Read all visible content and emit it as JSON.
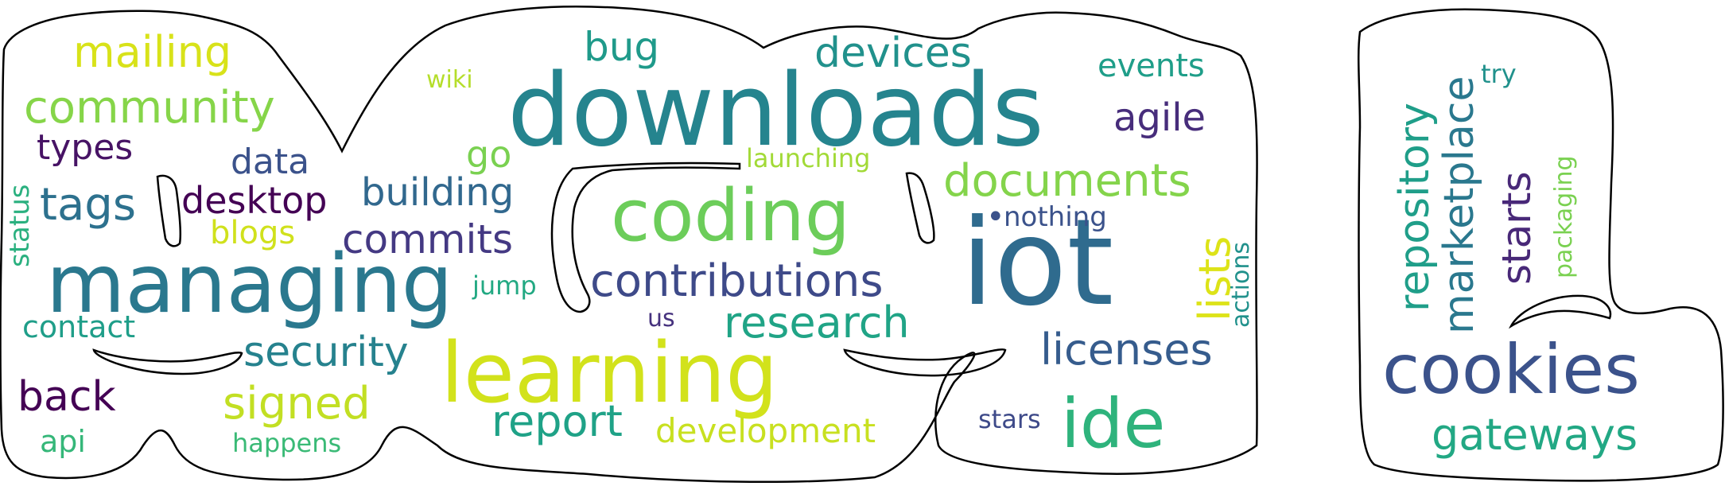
{
  "words": [
    {
      "text": "downloads",
      "color": "#25848e"
    },
    {
      "text": "iot",
      "color": "#2f6b8e"
    },
    {
      "text": "managing",
      "color": "#2a788e"
    },
    {
      "text": "learning",
      "color": "#d2e21b"
    },
    {
      "text": "coding",
      "color": "#6ccd5a"
    },
    {
      "text": "cookies",
      "color": "#3b528b"
    },
    {
      "text": "ide",
      "color": "#2eb37c"
    },
    {
      "text": "contributions",
      "color": "#3e4a89"
    },
    {
      "text": "documents",
      "color": "#84d44b"
    },
    {
      "text": "licenses",
      "color": "#365c8d"
    },
    {
      "text": "research",
      "color": "#20a486"
    },
    {
      "text": "report",
      "color": "#1fa287"
    },
    {
      "text": "security",
      "color": "#26828e"
    },
    {
      "text": "community",
      "color": "#86d549"
    },
    {
      "text": "mailing",
      "color": "#d8e219"
    },
    {
      "text": "signed",
      "color": "#c2df23"
    },
    {
      "text": "tags",
      "color": "#2d718e"
    },
    {
      "text": "commits",
      "color": "#443983"
    },
    {
      "text": "building",
      "color": "#31688e"
    },
    {
      "text": "devices",
      "color": "#21918c"
    },
    {
      "text": "repository",
      "color": "#1f9e89"
    },
    {
      "text": "marketplace",
      "color": "#2a788e"
    },
    {
      "text": "gateways",
      "color": "#22a884"
    },
    {
      "text": "starts",
      "color": "#482878"
    },
    {
      "text": "back",
      "color": "#440154"
    },
    {
      "text": "desktop",
      "color": "#440154"
    },
    {
      "text": "agile",
      "color": "#472d7b"
    },
    {
      "text": "bug",
      "color": "#1f9a8a"
    },
    {
      "text": "development",
      "color": "#c8e020"
    },
    {
      "text": "lists",
      "color": "#dde318"
    },
    {
      "text": "types",
      "color": "#471365"
    },
    {
      "text": "data",
      "color": "#3b528b"
    },
    {
      "text": "events",
      "color": "#1f9e89"
    },
    {
      "text": "go",
      "color": "#7ad151"
    },
    {
      "text": "blogs",
      "color": "#d0e11c"
    },
    {
      "text": "contact",
      "color": "#1f9e89"
    },
    {
      "text": "api",
      "color": "#35b779"
    },
    {
      "text": "happens",
      "color": "#3aba76"
    },
    {
      "text": "nothing",
      "color": "#3b528b"
    },
    {
      "text": "launching",
      "color": "#a2da37"
    },
    {
      "text": "status",
      "color": "#2ab07f"
    },
    {
      "text": "jump",
      "color": "#23a983"
    },
    {
      "text": "us",
      "color": "#46327e"
    },
    {
      "text": "stars",
      "color": "#3e4a89"
    },
    {
      "text": "actions",
      "color": "#21918c"
    },
    {
      "text": "packaging",
      "color": "#7ad151"
    },
    {
      "text": "try",
      "color": "#21918c"
    },
    {
      "text": "wiki",
      "color": "#b5de2b"
    },
    {
      "text": "",
      "color": "#2e6f8e"
    },
    {
      "text": "",
      "color": "#25858e"
    },
    {
      "text": "•",
      "color": "#3b528b"
    }
  ]
}
